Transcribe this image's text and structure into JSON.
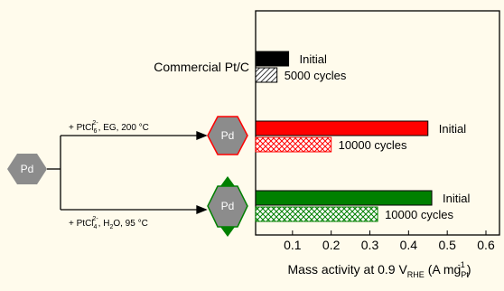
{
  "diagram": {
    "start": "Pd",
    "routes": [
      {
        "reagent": [
          "+ PtCl",
          "6",
          "2-",
          ", EG, 200 °C"
        ],
        "product": "Pd"
      },
      {
        "reagent": [
          "+ PtCl",
          "4",
          "2-",
          ", H",
          "2",
          "O, 95 °C"
        ],
        "product": "Pd"
      }
    ]
  },
  "chart_data": {
    "type": "hbar",
    "xlabel": [
      "Mass activity at 0.9 V",
      "RHE",
      " (A mg",
      "Pt",
      "-1",
      ")"
    ],
    "xlim": [
      0,
      0.635
    ],
    "xticks": [
      0.1,
      0.2,
      0.3,
      0.4,
      0.5,
      0.6
    ],
    "groups": [
      {
        "label": "Commercial Pt/C",
        "bars": [
          {
            "name": "Initial",
            "value": 0.09,
            "color": "#000000",
            "hatch": false
          },
          {
            "name": "5000 cycles",
            "value": 0.06,
            "color": "#000000",
            "hatch": true
          }
        ]
      },
      {
        "bars": [
          {
            "name": "Initial",
            "value": 0.45,
            "color": "#ff0000",
            "hatch": false
          },
          {
            "name": "10000 cycles",
            "value": 0.2,
            "color": "#ff0000",
            "hatch": true
          }
        ]
      },
      {
        "bars": [
          {
            "name": "Initial",
            "value": 0.46,
            "color": "#008000",
            "hatch": false
          },
          {
            "name": "10000 cycles",
            "value": 0.32,
            "color": "#008000",
            "hatch": true
          }
        ]
      }
    ]
  }
}
